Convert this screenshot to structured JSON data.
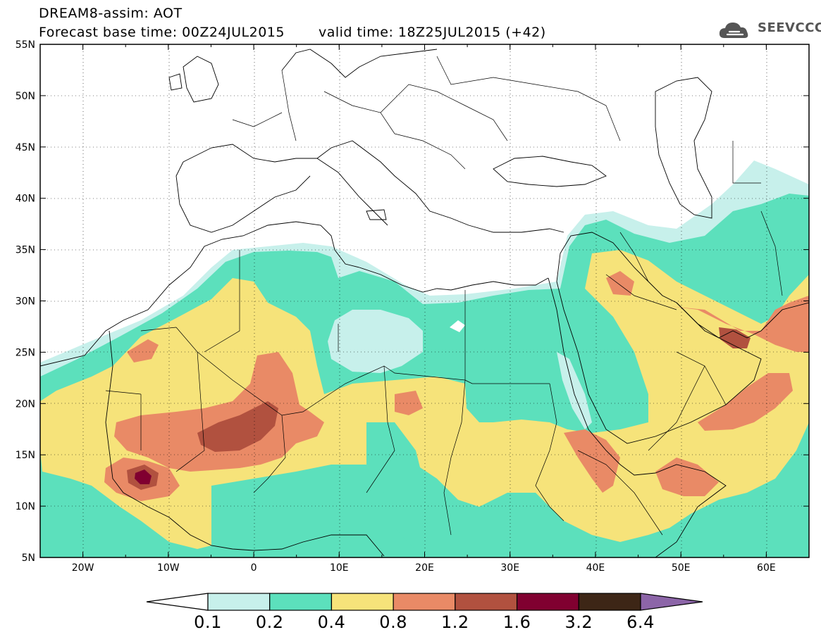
{
  "header": {
    "title": "DREAM8-assim: AOT",
    "base_time": "Forecast base time: 00Z24JUL2015",
    "valid_time": "valid time: 18Z25JUL2015 (+42)"
  },
  "logo": {
    "text": "SEEVCCC",
    "icon": "cloud-logo-icon",
    "color": "#555555"
  },
  "map": {
    "lat_labels": [
      "55N",
      "50N",
      "45N",
      "40N",
      "35N",
      "30N",
      "25N",
      "20N",
      "15N",
      "10N",
      "5N"
    ],
    "lon_labels": [
      "20W",
      "10W",
      "0",
      "10E",
      "20E",
      "30E",
      "40E",
      "50E",
      "60E"
    ],
    "extent": {
      "lon_min": -25,
      "lon_max": 65,
      "lat_min": 5,
      "lat_max": 55
    }
  },
  "colorbar": {
    "labels": [
      "0.1",
      "0.2",
      "0.4",
      "0.8",
      "1.2",
      "1.6",
      "3.2",
      "6.4"
    ],
    "colors": [
      "#ffffff",
      "#c7f0eb",
      "#5ce0bc",
      "#f6e37a",
      "#e98a66",
      "#b1513f",
      "#800030",
      "#3d2616",
      "#8c65a8"
    ]
  },
  "fill_colors": {
    "c1": "#c7f0eb",
    "c2": "#5ce0bc",
    "c3": "#f6e37a",
    "c4": "#e98a66",
    "c5": "#b1513f",
    "c6": "#800030"
  }
}
